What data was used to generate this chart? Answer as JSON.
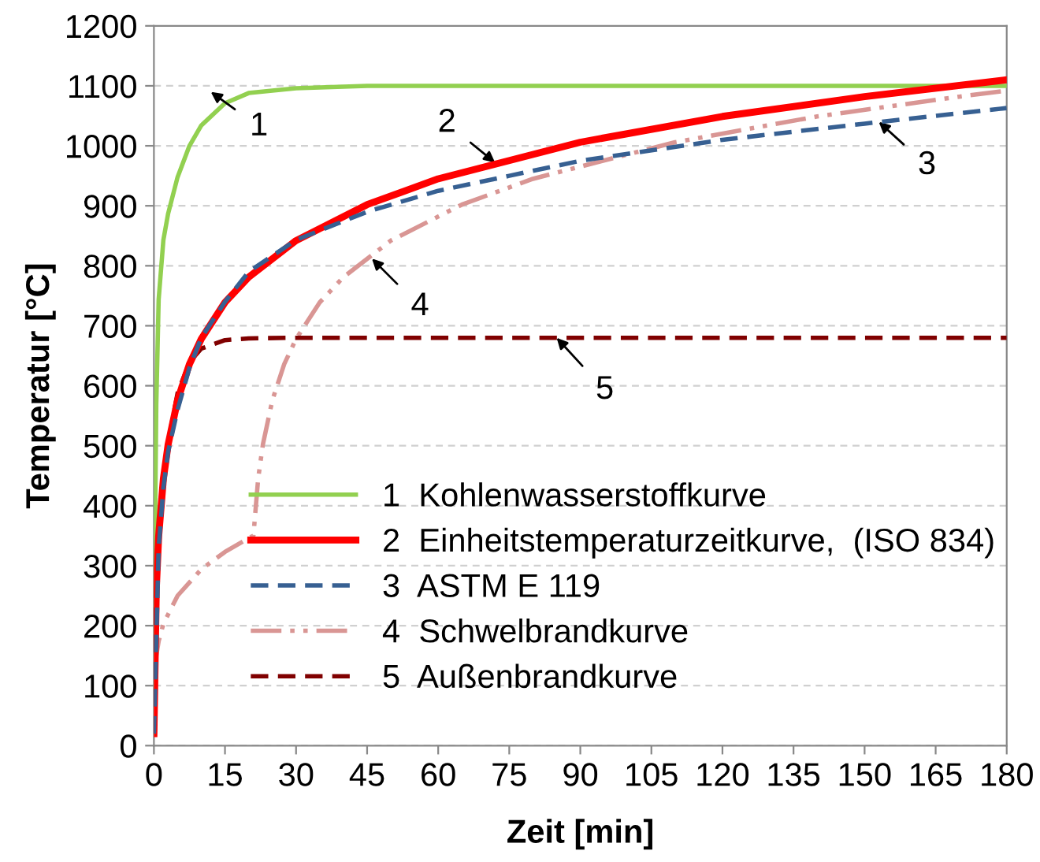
{
  "chart_data": {
    "type": "line",
    "xlabel": "Zeit [min]",
    "ylabel": "Temperatur [°C]",
    "xlim": [
      0,
      180
    ],
    "xticks": [
      0,
      15,
      30,
      45,
      60,
      75,
      90,
      105,
      120,
      135,
      150,
      165,
      180
    ],
    "ylim": [
      0,
      1200
    ],
    "yticks": [
      0,
      100,
      200,
      300,
      400,
      500,
      600,
      700,
      800,
      900,
      1000,
      1100,
      1200
    ],
    "grid": "y",
    "legend": "bottom",
    "marker": "none",
    "series": [
      {
        "name": "1  Kohlenwasserstoffkurve",
        "color": "#92d050",
        "line_style": "solid",
        "x": [
          0,
          0.25,
          0.5,
          1,
          2,
          3,
          5,
          7.5,
          10,
          15,
          20,
          30,
          45,
          180
        ],
        "values": [
          20,
          373,
          569,
          744,
          843,
          887,
          948,
          1000,
          1034,
          1071,
          1088,
          1096,
          1100,
          1100
        ]
      },
      {
        "name": "2  Einheitstemperaturzeitkurve,  (ISO 834)",
        "color": "#ff0000",
        "line_style": "solid",
        "x": [
          0,
          0.5,
          1,
          2,
          3,
          5,
          7.5,
          10,
          15,
          20,
          30,
          45,
          60,
          90,
          120,
          150,
          180
        ],
        "values": [
          20,
          261,
          349,
          445,
          502,
          576,
          636,
          678,
          739,
          781,
          842,
          902,
          945,
          1006,
          1049,
          1082,
          1110
        ]
      },
      {
        "name": "3  ASTM E 119",
        "color": "#376092",
        "line_style": "dashed",
        "x": [
          0,
          1,
          2,
          3,
          5,
          7.5,
          10,
          15,
          20,
          30,
          45,
          60,
          75,
          90,
          120,
          150,
          180
        ],
        "values": [
          20,
          330,
          430,
          490,
          560,
          630,
          680,
          740,
          790,
          843,
          890,
          925,
          950,
          975,
          1010,
          1037,
          1063
        ]
      },
      {
        "name": "4  Schwelbrandkurve",
        "color": "#d99694",
        "line_style": "dashdotdot",
        "x": [
          0,
          0.1,
          0.5,
          1,
          2,
          5,
          10,
          15,
          20,
          21,
          22,
          23,
          25,
          27.5,
          30,
          35,
          40,
          50,
          65,
          80,
          110,
          140,
          170,
          180
        ],
        "values": [
          20,
          107,
          150,
          174,
          203,
          250,
          294,
          323,
          346,
          350,
          445,
          502,
          576,
          636,
          678,
          739,
          781,
          842,
          902,
          945,
          1006,
          1049,
          1082,
          1092
        ]
      },
      {
        "name": "5  Außenbrandkurve",
        "color": "#800000",
        "line_style": "dashed",
        "x": [
          0,
          0.25,
          0.5,
          1,
          2,
          3,
          5,
          7.5,
          10,
          15,
          20,
          30,
          180
        ],
        "values": [
          20,
          182,
          263,
          346,
          441,
          506,
          588,
          639,
          662,
          676,
          679,
          680,
          680
        ]
      }
    ],
    "annotations": [
      {
        "text": "1",
        "x": 12,
        "y": 1090
      },
      {
        "text": "2",
        "x": 72,
        "y": 972
      },
      {
        "text": "3",
        "x": 153,
        "y": 1040
      },
      {
        "text": "4",
        "x": 46,
        "y": 812
      },
      {
        "text": "5",
        "x": 85,
        "y": 680
      }
    ]
  }
}
